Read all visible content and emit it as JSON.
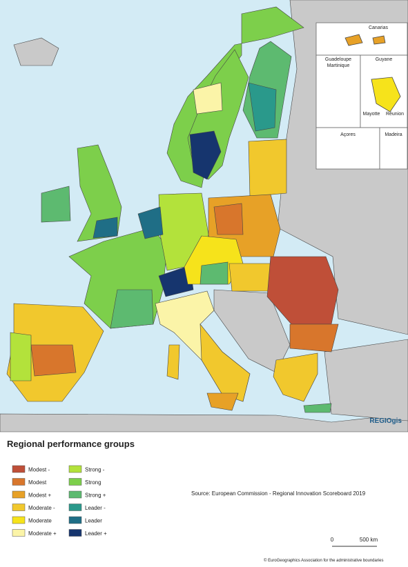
{
  "map": {
    "insets": [
      "Canarias",
      "Guadeloupe",
      "Martinique",
      "Guyane",
      "Mayotte",
      "Réunion",
      "Açores",
      "Madeira"
    ],
    "brand": "REGIOgis"
  },
  "legend": {
    "title": "Regional performance groups",
    "items": [
      {
        "label": "Modest -",
        "color": "#bf4f38"
      },
      {
        "label": "Modest",
        "color": "#d8762c"
      },
      {
        "label": "Modest +",
        "color": "#e7a127"
      },
      {
        "label": "Moderate -",
        "color": "#f1c82d"
      },
      {
        "label": "Moderate",
        "color": "#f6e31b"
      },
      {
        "label": "Moderate +",
        "color": "#fbf4a8"
      },
      {
        "label": "Strong -",
        "color": "#b3e23b"
      },
      {
        "label": "Strong",
        "color": "#7dcf4b"
      },
      {
        "label": "Strong +",
        "color": "#5dba70"
      },
      {
        "label": "Leader -",
        "color": "#2a998b"
      },
      {
        "label": "Leader",
        "color": "#1f6e86"
      },
      {
        "label": "Leader +",
        "color": "#16356e"
      }
    ]
  },
  "source": "Source: European Commission - Regional Innovation Scoreboard 2019",
  "scale": {
    "start": "0",
    "end": "500 km"
  },
  "credit": "© EuroGeographics Association for the administrative boundaries"
}
